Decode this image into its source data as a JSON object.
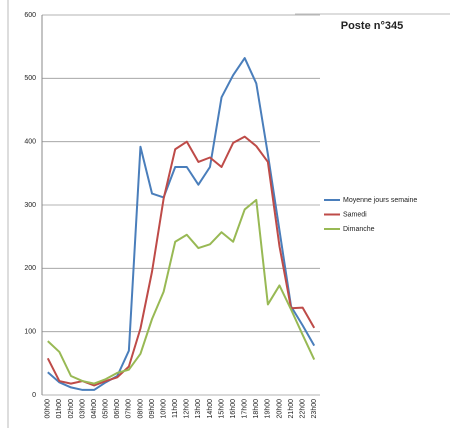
{
  "chart_data": {
    "type": "line",
    "title": "Poste n°345",
    "categories": [
      "00h00",
      "01h00",
      "02h00",
      "03h00",
      "04h00",
      "05h00",
      "06h00",
      "07h00",
      "08h00",
      "09h00",
      "10h00",
      "11h00",
      "12h00",
      "13h00",
      "14h00",
      "15h00",
      "16h00",
      "17h00",
      "18h00",
      "19h00",
      "20h00",
      "21h00",
      "22h00",
      "23h00"
    ],
    "series": [
      {
        "name": "Moyenne jours semaine",
        "color": "#4a7ebb",
        "values": [
          36,
          20,
          12,
          8,
          8,
          20,
          30,
          70,
          392,
          318,
          312,
          360,
          360,
          332,
          360,
          470,
          505,
          532,
          492,
          380,
          260,
          140,
          110,
          78
        ]
      },
      {
        "name": "Samedi",
        "color": "#be4b48",
        "values": [
          58,
          22,
          18,
          22,
          15,
          22,
          28,
          45,
          105,
          195,
          310,
          388,
          400,
          368,
          375,
          360,
          398,
          408,
          393,
          368,
          235,
          137,
          138,
          106
        ]
      },
      {
        "name": "Dimanche",
        "color": "#98b954",
        "values": [
          85,
          68,
          30,
          22,
          18,
          25,
          35,
          40,
          65,
          120,
          163,
          242,
          253,
          232,
          238,
          257,
          242,
          293,
          308,
          143,
          173,
          135,
          95,
          56
        ]
      }
    ],
    "ylim": [
      0,
      600
    ],
    "yticks": [
      0,
      100,
      200,
      300,
      400,
      500,
      600
    ],
    "grid": true,
    "legend": "right"
  }
}
